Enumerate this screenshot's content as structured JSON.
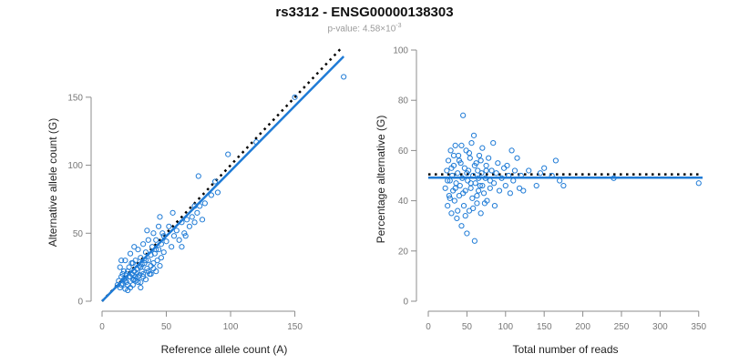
{
  "title": "rs3312 - ENSG00000138303",
  "subtitle": {
    "prefix": "p-value: 4.58×10",
    "exponent": "-3"
  },
  "colors": {
    "points": "#1f7bd6",
    "fit": "#1f7bd6",
    "expected": "#000000",
    "axis": "#8c8c8c"
  },
  "chart_data": [
    {
      "type": "scatter",
      "xlabel": "Reference allele count (A)",
      "ylabel": "Alternative allele count (G)",
      "xlim": [
        0,
        190
      ],
      "ylim": [
        0,
        180
      ],
      "xticks": [
        0,
        50,
        100,
        150
      ],
      "yticks": [
        0,
        50,
        100,
        150
      ],
      "grid": false,
      "lines": [
        {
          "role": "expected",
          "style": "dotted",
          "x": [
            0,
            186
          ],
          "y": [
            0,
            186
          ]
        },
        {
          "role": "fit",
          "style": "solid",
          "x": [
            0,
            188
          ],
          "y": [
            0,
            180
          ]
        }
      ],
      "points": [
        [
          12,
          12
        ],
        [
          14,
          10
        ],
        [
          15,
          18
        ],
        [
          16,
          13
        ],
        [
          17,
          22
        ],
        [
          18,
          15
        ],
        [
          19,
          20
        ],
        [
          20,
          12
        ],
        [
          21,
          25
        ],
        [
          22,
          18
        ],
        [
          23,
          28
        ],
        [
          24,
          16
        ],
        [
          25,
          22
        ],
        [
          26,
          30
        ],
        [
          27,
          20
        ],
        [
          28,
          14
        ],
        [
          29,
          26
        ],
        [
          30,
          32
        ],
        [
          31,
          22
        ],
        [
          32,
          18
        ],
        [
          33,
          28
        ],
        [
          34,
          36
        ],
        [
          35,
          24
        ],
        [
          36,
          30
        ],
        [
          37,
          20
        ],
        [
          38,
          34
        ],
        [
          39,
          40
        ],
        [
          40,
          28
        ],
        [
          41,
          35
        ],
        [
          42,
          45
        ],
        [
          43,
          30
        ],
        [
          44,
          38
        ],
        [
          45,
          26
        ],
        [
          46,
          42
        ],
        [
          47,
          50
        ],
        [
          48,
          36
        ],
        [
          50,
          44
        ],
        [
          52,
          55
        ],
        [
          54,
          40
        ],
        [
          56,
          48
        ],
        [
          58,
          52
        ],
        [
          60,
          45
        ],
        [
          62,
          58
        ],
        [
          64,
          50
        ],
        [
          66,
          60
        ],
        [
          68,
          55
        ],
        [
          70,
          62
        ],
        [
          72,
          58
        ],
        [
          74,
          65
        ],
        [
          76,
          70
        ],
        [
          78,
          60
        ],
        [
          80,
          72
        ],
        [
          14,
          25
        ],
        [
          16,
          20
        ],
        [
          18,
          30
        ],
        [
          20,
          22
        ],
        [
          22,
          35
        ],
        [
          24,
          28
        ],
        [
          26,
          18
        ],
        [
          28,
          38
        ],
        [
          30,
          25
        ],
        [
          32,
          42
        ],
        [
          34,
          30
        ],
        [
          36,
          45
        ],
        [
          38,
          26
        ],
        [
          40,
          50
        ],
        [
          42,
          38
        ],
        [
          44,
          55
        ],
        [
          46,
          32
        ],
        [
          48,
          48
        ],
        [
          24,
          12
        ],
        [
          26,
          15
        ],
        [
          28,
          18
        ],
        [
          30,
          14
        ],
        [
          32,
          20
        ],
        [
          34,
          16
        ],
        [
          36,
          22
        ],
        [
          38,
          20
        ],
        [
          40,
          24
        ],
        [
          42,
          22
        ],
        [
          13,
          15
        ],
        [
          15,
          12
        ],
        [
          17,
          16
        ],
        [
          19,
          14
        ],
        [
          21,
          18
        ],
        [
          23,
          20
        ],
        [
          25,
          16
        ],
        [
          27,
          24
        ],
        [
          29,
          19
        ],
        [
          31,
          27
        ],
        [
          15,
          30
        ],
        [
          25,
          40
        ],
        [
          35,
          52
        ],
        [
          45,
          62
        ],
        [
          55,
          65
        ],
        [
          62,
          40
        ],
        [
          65,
          48
        ],
        [
          72,
          70
        ],
        [
          75,
          92
        ],
        [
          85,
          78
        ],
        [
          88,
          88
        ],
        [
          90,
          80
        ],
        [
          98,
          108
        ],
        [
          120,
          117
        ],
        [
          150,
          150
        ],
        [
          188,
          165
        ],
        [
          20,
          8
        ],
        [
          18,
          9
        ],
        [
          22,
          10
        ],
        [
          30,
          10
        ]
      ]
    },
    {
      "type": "scatter",
      "xlabel": "Total number of reads",
      "ylabel": "Percentage alternative (G)",
      "xlim": [
        0,
        355
      ],
      "ylim": [
        0,
        100
      ],
      "xticks": [
        0,
        50,
        100,
        150,
        200,
        250,
        300,
        350
      ],
      "yticks": [
        0,
        20,
        40,
        60,
        80,
        100
      ],
      "grid": false,
      "lines": [
        {
          "role": "expected",
          "style": "dotted",
          "x": [
            0,
            355
          ],
          "y": [
            50.5,
            50.5
          ]
        },
        {
          "role": "fit",
          "style": "solid",
          "x": [
            0,
            355
          ],
          "y": [
            49.2,
            49.2
          ]
        }
      ],
      "points": [
        [
          22,
          45
        ],
        [
          24,
          52
        ],
        [
          25,
          38
        ],
        [
          26,
          56
        ],
        [
          27,
          42
        ],
        [
          28,
          48
        ],
        [
          29,
          60
        ],
        [
          30,
          35
        ],
        [
          31,
          50
        ],
        [
          32,
          44
        ],
        [
          33,
          54
        ],
        [
          34,
          40
        ],
        [
          35,
          62
        ],
        [
          36,
          47
        ],
        [
          37,
          33
        ],
        [
          38,
          51
        ],
        [
          39,
          58
        ],
        [
          40,
          42
        ],
        [
          41,
          46
        ],
        [
          42,
          55
        ],
        [
          43,
          30
        ],
        [
          44,
          49
        ],
        [
          45,
          74
        ],
        [
          46,
          38
        ],
        [
          47,
          53
        ],
        [
          48,
          44
        ],
        [
          49,
          60
        ],
        [
          50,
          27
        ],
        [
          51,
          48
        ],
        [
          52,
          52
        ],
        [
          53,
          36
        ],
        [
          54,
          57
        ],
        [
          55,
          45
        ],
        [
          56,
          63
        ],
        [
          57,
          41
        ],
        [
          58,
          50
        ],
        [
          59,
          66
        ],
        [
          60,
          24
        ],
        [
          61,
          47
        ],
        [
          62,
          55
        ],
        [
          63,
          39
        ],
        [
          64,
          52
        ],
        [
          65,
          44
        ],
        [
          66,
          58
        ],
        [
          67,
          46
        ],
        [
          68,
          35
        ],
        [
          69,
          51
        ],
        [
          70,
          61
        ],
        [
          72,
          43
        ],
        [
          74,
          49
        ],
        [
          75,
          54
        ],
        [
          76,
          40
        ],
        [
          78,
          57
        ],
        [
          80,
          45
        ],
        [
          82,
          52
        ],
        [
          84,
          63
        ],
        [
          85,
          47
        ],
        [
          86,
          38
        ],
        [
          88,
          51
        ],
        [
          90,
          55
        ],
        [
          92,
          44
        ],
        [
          95,
          49
        ],
        [
          98,
          53
        ],
        [
          100,
          46
        ],
        [
          102,
          54
        ],
        [
          104,
          50
        ],
        [
          106,
          43
        ],
        [
          108,
          60
        ],
        [
          110,
          48
        ],
        [
          112,
          52
        ],
        [
          115,
          57
        ],
        [
          118,
          45
        ],
        [
          120,
          50
        ],
        [
          123,
          44
        ],
        [
          25,
          48
        ],
        [
          30,
          53
        ],
        [
          35,
          45
        ],
        [
          40,
          56
        ],
        [
          45,
          43
        ],
        [
          50,
          51
        ],
        [
          55,
          47
        ],
        [
          60,
          54
        ],
        [
          65,
          49
        ],
        [
          70,
          46
        ],
        [
          75,
          52
        ],
        [
          80,
          48
        ],
        [
          28,
          41
        ],
        [
          33,
          58
        ],
        [
          38,
          36
        ],
        [
          43,
          62
        ],
        [
          48,
          34
        ],
        [
          53,
          59
        ],
        [
          58,
          37
        ],
        [
          63,
          42
        ],
        [
          68,
          56
        ],
        [
          73,
          39
        ],
        [
          130,
          52
        ],
        [
          140,
          46
        ],
        [
          145,
          51
        ],
        [
          150,
          53
        ],
        [
          160,
          50
        ],
        [
          165,
          56
        ],
        [
          170,
          48
        ],
        [
          175,
          46
        ],
        [
          240,
          49
        ],
        [
          350,
          47
        ]
      ]
    }
  ]
}
